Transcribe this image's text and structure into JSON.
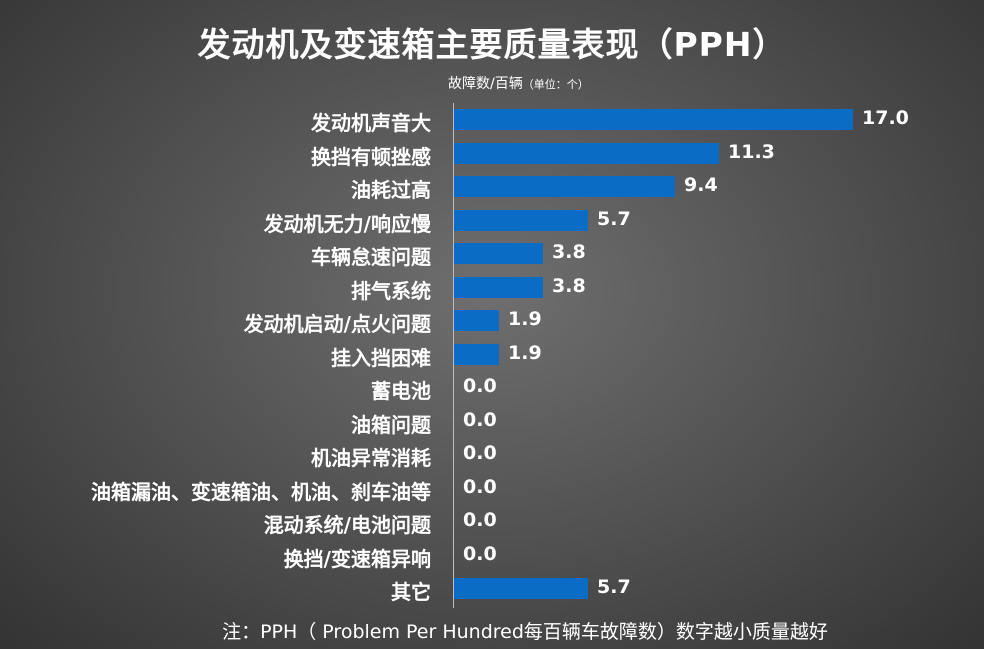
{
  "chart_data": {
    "type": "bar",
    "orientation": "horizontal",
    "title": "发动机及变速箱主要质量表现（PPH）",
    "unit_label_main": "故障数/百辆",
    "unit_label_note": "（单位：个）",
    "categories": [
      "发动机声音大",
      "换挡有顿挫感",
      "油耗过高",
      "发动机无力/响应慢",
      "车辆怠速问题",
      "排气系统",
      "发动机启动/点火问题",
      "挂入挡困难",
      "蓄电池",
      "油箱问题",
      "机油异常消耗",
      "油箱漏油、变速箱油、机油、刹车油等",
      "混动系统/电池问题",
      "换挡/变速箱异响",
      "其它"
    ],
    "values": [
      17.0,
      11.3,
      9.4,
      5.7,
      3.8,
      3.8,
      1.9,
      1.9,
      0.0,
      0.0,
      0.0,
      0.0,
      0.0,
      0.0,
      5.7
    ],
    "value_labels": [
      "17.0",
      "11.3",
      "9.4",
      "5.7",
      "3.8",
      "3.8",
      "1.9",
      "1.9",
      "0.0",
      "0.0",
      "0.0",
      "0.0",
      "0.0",
      "0.0",
      "5.7"
    ],
    "xlim": [
      0,
      17.0
    ],
    "grid": false,
    "bar_color": "#0a6cc4",
    "note": "注：PPH（ Problem Per Hundred每百辆车故障数）数字越小质量越好"
  }
}
